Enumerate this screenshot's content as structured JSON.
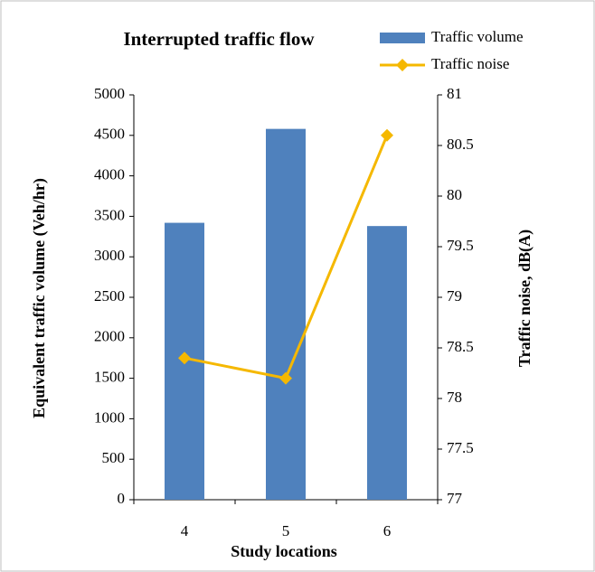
{
  "chart_data": {
    "type": "bar",
    "title": "Interrupted traffic flow",
    "xlabel": "Study locations",
    "ylabel": "Equivalent traffic volume (Veh/hr)",
    "y2label": "Traffic noise, dB(A)",
    "categories": [
      "4",
      "5",
      "6"
    ],
    "series": [
      {
        "name": "Traffic volume",
        "color": "#4f81bd",
        "type": "bar",
        "values": [
          3420,
          4580,
          3380
        ]
      },
      {
        "name": "Traffic noise",
        "color": "#f5b800",
        "type": "line",
        "axis": "y2",
        "values": [
          78.4,
          78.2,
          80.6
        ]
      }
    ],
    "ylim": [
      0,
      5000
    ],
    "yticks": [
      0,
      500,
      1000,
      1500,
      2000,
      2500,
      3000,
      3500,
      4000,
      4500,
      5000
    ],
    "y2lim": [
      77,
      81
    ],
    "y2ticks": [
      77,
      77.5,
      78,
      78.5,
      79,
      79.5,
      80,
      80.5,
      81
    ],
    "legend": "top-right"
  }
}
